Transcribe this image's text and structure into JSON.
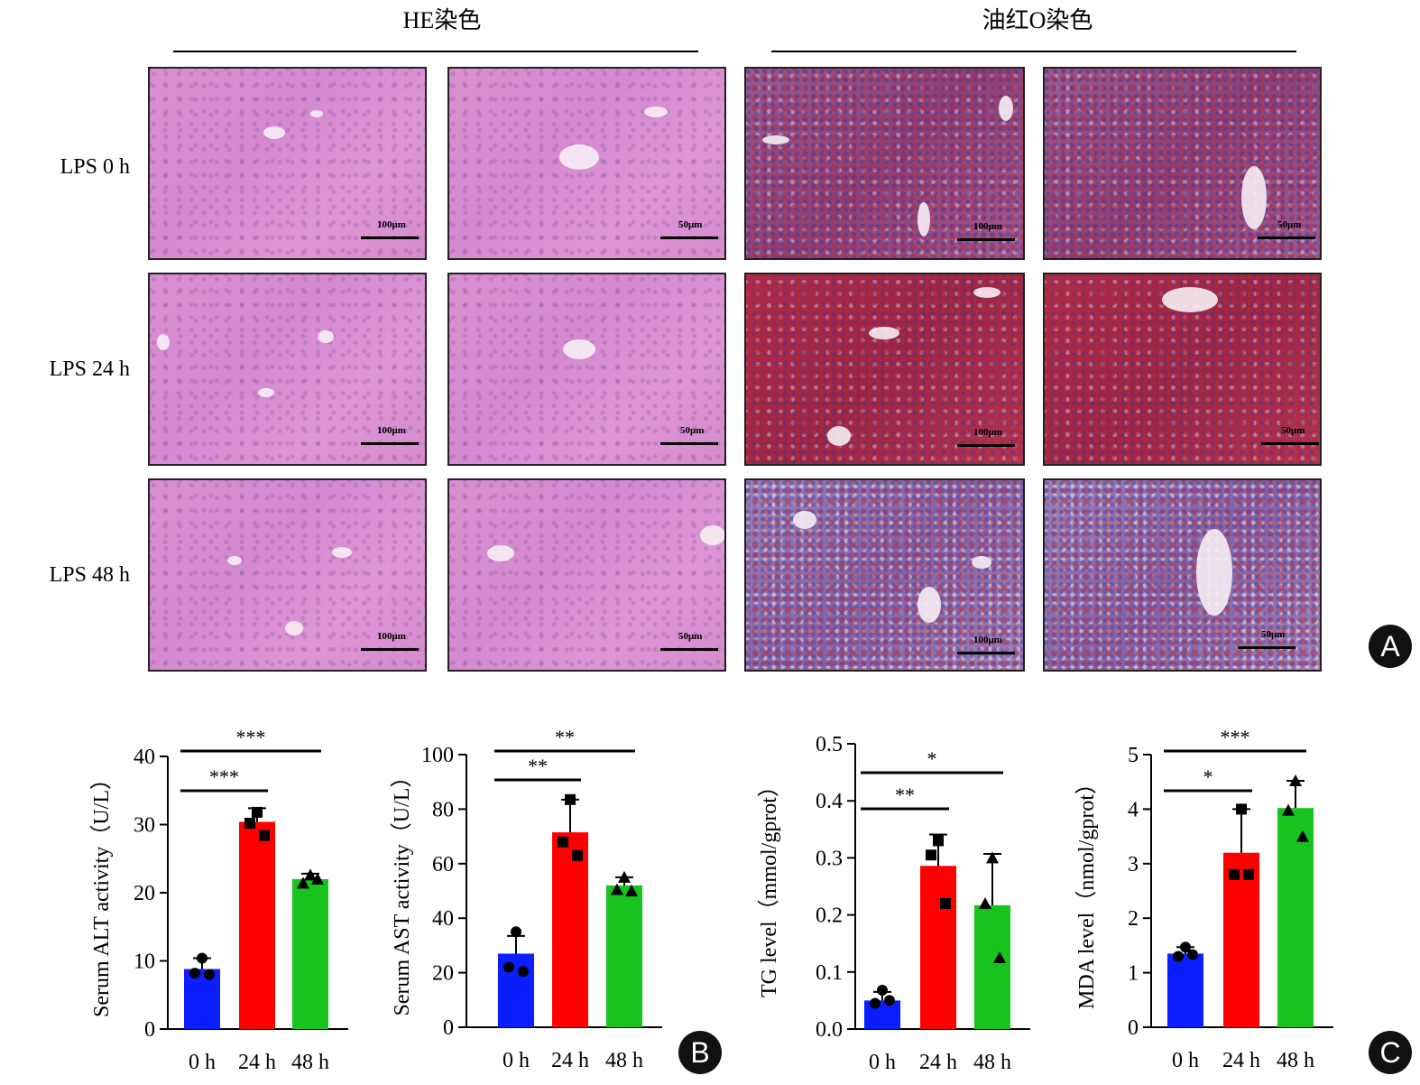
{
  "figure": {
    "he_title": "HE染色",
    "oro_title": "油红O染色",
    "rows": [
      {
        "label": "LPS 0 h"
      },
      {
        "label": "LPS 24 h"
      },
      {
        "label": "LPS 48 h"
      }
    ],
    "scale_labels": [
      "100μm",
      "50μm",
      "100μm",
      "50μm"
    ],
    "panel_labels": {
      "a": "A",
      "b": "B",
      "c": "C"
    }
  },
  "colors": {
    "bar_0h": "#0a1eff",
    "bar_24h": "#ff0000",
    "bar_48h": "#19c31e"
  },
  "chart_data": [
    {
      "type": "bar",
      "categories": [
        "0 h",
        "24 h",
        "48 h"
      ],
      "values": [
        8.8,
        30.4,
        22.0
      ],
      "errors": [
        1.6,
        2.0,
        0.8
      ],
      "points": [
        [
          10.4,
          8.2,
          8.0
        ],
        [
          31.8,
          30.2,
          28.4
        ],
        [
          22.6,
          21.4,
          22.0
        ]
      ],
      "markers": [
        "circle",
        "square",
        "triangle"
      ],
      "ylabel": "Serum ALT activity（U/L）",
      "ylim": [
        0,
        40
      ],
      "yticks": [
        0,
        10,
        20,
        30,
        40
      ],
      "significance": [
        {
          "from": 0,
          "to": 1,
          "label": "***"
        },
        {
          "from": 0,
          "to": 2,
          "label": "***"
        }
      ]
    },
    {
      "type": "bar",
      "categories": [
        "0 h",
        "24 h",
        "48 h"
      ],
      "values": [
        27.0,
        71.5,
        52.0
      ],
      "errors": [
        6.5,
        12.0,
        3.0
      ],
      "points": [
        [
          35.0,
          22.0,
          20.5
        ],
        [
          83.5,
          68.0,
          63.0
        ],
        [
          55.0,
          50.5,
          50.0
        ]
      ],
      "markers": [
        "circle",
        "square",
        "triangle"
      ],
      "ylabel": "Serum AST activity（U/L）",
      "ylim": [
        0,
        100
      ],
      "yticks": [
        0,
        20,
        40,
        60,
        80,
        100
      ],
      "significance": [
        {
          "from": 0,
          "to": 1,
          "label": "**"
        },
        {
          "from": 0,
          "to": 2,
          "label": "**"
        }
      ]
    },
    {
      "type": "bar",
      "categories": [
        "0 h",
        "24 h",
        "48 h"
      ],
      "values": [
        0.05,
        0.286,
        0.217
      ],
      "errors": [
        0.015,
        0.055,
        0.09
      ],
      "points": [
        [
          0.068,
          0.045,
          0.05
        ],
        [
          0.33,
          0.305,
          0.22
        ],
        [
          0.3,
          0.22,
          0.125
        ]
      ],
      "markers": [
        "circle",
        "square",
        "triangle"
      ],
      "ylabel": "TG level（mmol/gprot）",
      "ylim": [
        0,
        0.5
      ],
      "yticks": [
        0.0,
        0.1,
        0.2,
        0.3,
        0.4,
        0.5
      ],
      "ytick_labels": [
        "0.0",
        "0.1",
        "0.2",
        "0.3",
        "0.4",
        "0.5"
      ],
      "significance": [
        {
          "from": 0,
          "to": 1,
          "label": "**"
        },
        {
          "from": 0,
          "to": 2,
          "label": "*"
        }
      ]
    },
    {
      "type": "bar",
      "categories": [
        "0 h",
        "24 h",
        "48 h"
      ],
      "values": [
        1.35,
        3.2,
        4.02
      ],
      "errors": [
        0.12,
        0.8,
        0.5
      ],
      "points": [
        [
          1.47,
          1.3,
          1.33
        ],
        [
          4.0,
          2.8,
          2.8
        ],
        [
          4.52,
          3.98,
          3.5
        ]
      ],
      "markers": [
        "circle",
        "square",
        "triangle"
      ],
      "ylabel": "MDA level（nmol/gprot）",
      "ylim": [
        0,
        5
      ],
      "yticks": [
        0,
        1,
        2,
        3,
        4,
        5
      ],
      "significance": [
        {
          "from": 0,
          "to": 1,
          "label": "*"
        },
        {
          "from": 0,
          "to": 2,
          "label": "***"
        }
      ]
    }
  ]
}
